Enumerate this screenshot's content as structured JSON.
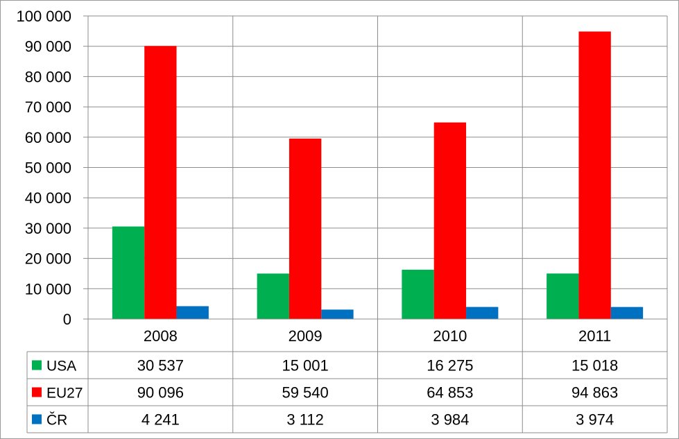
{
  "chart_data": {
    "type": "bar",
    "categories": [
      "2008",
      "2009",
      "2010",
      "2011"
    ],
    "series": [
      {
        "name": "USA",
        "color": "#00b050",
        "values": [
          30537,
          15001,
          16275,
          15018
        ],
        "labels": [
          "30 537",
          "15 001",
          "16 275",
          "15 018"
        ]
      },
      {
        "name": "EU27",
        "color": "#ff0000",
        "values": [
          90096,
          59540,
          64853,
          94863
        ],
        "labels": [
          "90 096",
          "59 540",
          "64 853",
          "94 863"
        ]
      },
      {
        "name": "ČR",
        "color": "#0070c0",
        "values": [
          4241,
          3112,
          3984,
          3974
        ],
        "labels": [
          "4 241",
          "3 112",
          "3 984",
          "3 974"
        ]
      }
    ],
    "ylim": [
      0,
      100000
    ],
    "yticks": [
      0,
      10000,
      20000,
      30000,
      40000,
      50000,
      60000,
      70000,
      80000,
      90000,
      100000
    ],
    "ytick_labels": [
      "0",
      "10 000",
      "20 000",
      "30 000",
      "40 000",
      "50 000",
      "60 000",
      "70 000",
      "80 000",
      "90 000",
      "100 000"
    ],
    "grid": true,
    "legend": "data-table-left",
    "title": "",
    "xlabel": "",
    "ylabel": ""
  }
}
